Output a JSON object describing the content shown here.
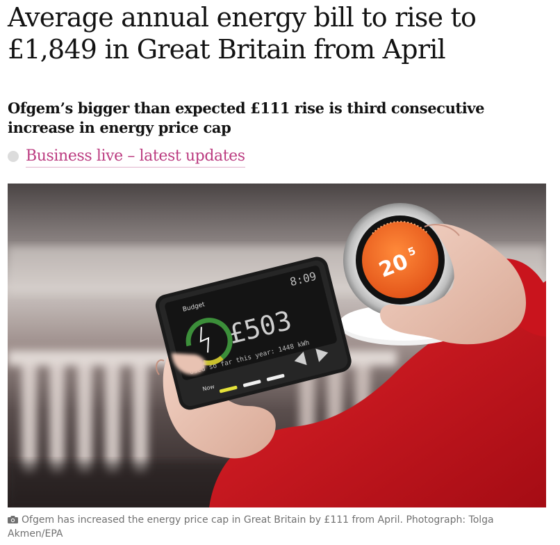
{
  "article": {
    "headline": "Average annual energy bill to rise to £1,849 in Great Britain from April",
    "standfirst": "Ofgem’s bigger than expected £111 rise is third consecutive increase in energy price cap",
    "live_link": "Business live – latest updates",
    "caption": "Ofgem has increased the energy price cap in Great Britain by £111 from April. Photograph: Tolga Akmen/EPA"
  },
  "photo": {
    "meter_time": "8:09",
    "meter_budget": "Budget",
    "meter_amount": "£503",
    "meter_usage": "Used so far this year: 1448 kWh",
    "meter_now": "Now",
    "thermostat_temp": "20",
    "thermostat_decimal": "5"
  },
  "colors": {
    "link": "#bb3b80",
    "thermostat": "#f26a22",
    "sleeve": "#d0121c"
  }
}
